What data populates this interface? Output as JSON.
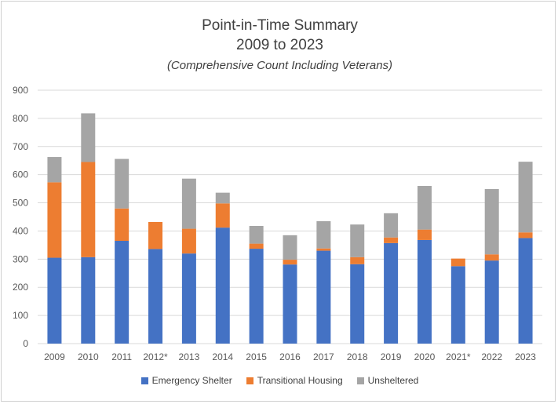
{
  "chart_data": {
    "type": "bar",
    "stacked": true,
    "title": "Point-in-Time Summary",
    "subtitle_line2": "2009 to 2023",
    "subtitle_line3": "(Comprehensive Count Including Veterans)",
    "categories": [
      "2009",
      "2010",
      "2011",
      "2012*",
      "2013",
      "2014",
      "2015",
      "2016",
      "2017",
      "2018",
      "2019",
      "2020",
      "2021*",
      "2022",
      "2023"
    ],
    "series": [
      {
        "name": "Emergency Shelter",
        "color": "#4472C4",
        "values": [
          305,
          307,
          365,
          336,
          320,
          412,
          337,
          281,
          330,
          282,
          357,
          368,
          275,
          295,
          375
        ]
      },
      {
        "name": "Transitional Housing",
        "color": "#ED7D31",
        "values": [
          268,
          338,
          115,
          96,
          88,
          86,
          18,
          17,
          8,
          25,
          20,
          37,
          27,
          22,
          20
        ]
      },
      {
        "name": "Unsheltered",
        "color": "#A5A5A5",
        "values": [
          90,
          173,
          176,
          0,
          178,
          38,
          63,
          87,
          97,
          116,
          86,
          155,
          0,
          232,
          251
        ]
      }
    ],
    "ylim": [
      0,
      900
    ],
    "yticks": [
      "0",
      "100",
      "200",
      "300",
      "400",
      "500",
      "600",
      "700",
      "800",
      "900"
    ],
    "grid": true,
    "legend_position": "bottom"
  }
}
